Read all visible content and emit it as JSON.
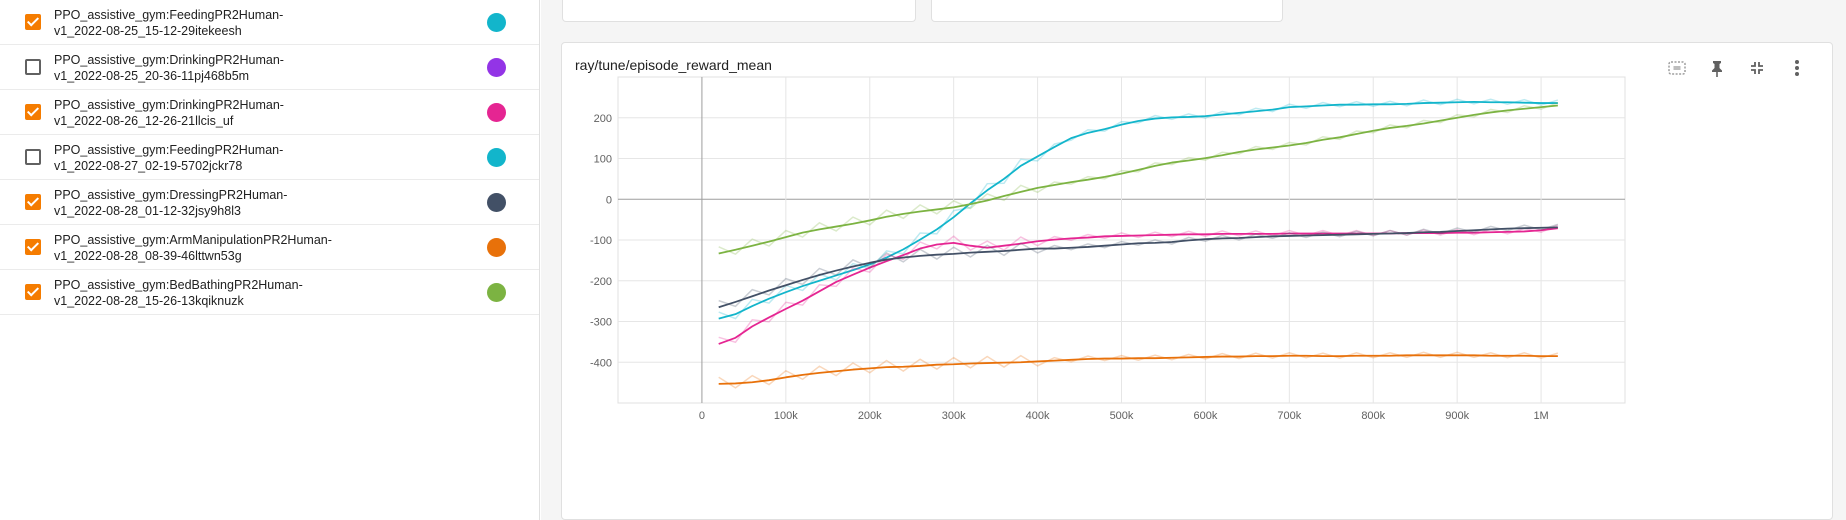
{
  "runs": [
    {
      "name_line1": "PPO_assistive_gym:FeedingPR2Human-",
      "name_line2": "v1_2022-08-25_15-12-29itekeesh",
      "checked": true,
      "color": "#12b5cb"
    },
    {
      "name_line1": "PPO_assistive_gym:DrinkingPR2Human-",
      "name_line2": "v1_2022-08-25_20-36-11pj468b5m",
      "checked": false,
      "color": "#9334e6"
    },
    {
      "name_line1": "PPO_assistive_gym:DrinkingPR2Human-",
      "name_line2": "v1_2022-08-26_12-26-21llcis_uf",
      "checked": true,
      "color": "#e52592"
    },
    {
      "name_line1": "PPO_assistive_gym:FeedingPR2Human-",
      "name_line2": "v1_2022-08-27_02-19-5702jckr78",
      "checked": false,
      "color": "#12b5cb"
    },
    {
      "name_line1": "PPO_assistive_gym:DressingPR2Human-",
      "name_line2": "v1_2022-08-28_01-12-32jsy9h8l3",
      "checked": true,
      "color": "#425066"
    },
    {
      "name_line1": "PPO_assistive_gym:ArmManipulationPR2Human-",
      "name_line2": "v1_2022-08-28_08-39-46lttwn53g",
      "checked": true,
      "color": "#e8710a"
    },
    {
      "name_line1": "PPO_assistive_gym:BedBathingPR2Human-",
      "name_line2": "v1_2022-08-28_15-26-13kqiknuzk",
      "checked": true,
      "color": "#7cb342"
    }
  ],
  "card": {
    "title": "ray/tune/episode_reward_mean",
    "tools": [
      "fit-domain-icon",
      "pin-icon",
      "collapse-icon",
      "more-vert-icon"
    ]
  },
  "chart_data": {
    "type": "line",
    "title": "ray/tune/episode_reward_mean",
    "xlabel": "",
    "ylabel": "",
    "xlim": [
      -100000,
      1100000
    ],
    "ylim": [
      -500,
      300
    ],
    "x_ticks": [
      "0",
      "100k",
      "200k",
      "300k",
      "400k",
      "500k",
      "600k",
      "700k",
      "800k",
      "900k",
      "1M"
    ],
    "y_ticks": [
      "200",
      "100",
      "0",
      "-100",
      "-200",
      "-300",
      "-400"
    ],
    "grid": true,
    "x": [
      20000,
      40000,
      60000,
      80000,
      100000,
      120000,
      140000,
      160000,
      180000,
      200000,
      220000,
      240000,
      260000,
      280000,
      300000,
      320000,
      340000,
      360000,
      380000,
      400000,
      420000,
      440000,
      460000,
      480000,
      500000,
      520000,
      540000,
      560000,
      580000,
      600000,
      620000,
      640000,
      660000,
      680000,
      700000,
      720000,
      740000,
      760000,
      780000,
      800000,
      820000,
      840000,
      860000,
      880000,
      900000,
      920000,
      940000,
      960000,
      980000,
      1000000,
      1020000
    ],
    "series": [
      {
        "run": 0,
        "color": "#12b5cb",
        "values": [
          -293,
          -282,
          -262,
          -244,
          -228,
          -213,
          -200,
          -187,
          -174,
          -160,
          -143,
          -123,
          -99,
          -74,
          -44,
          -10,
          22,
          50,
          82,
          105,
          128,
          150,
          163,
          172,
          183,
          192,
          198,
          201,
          202,
          204,
          208,
          212,
          216,
          220,
          226,
          228,
          230,
          232,
          232,
          233,
          233,
          234,
          236,
          237,
          238,
          239,
          238,
          238,
          237,
          236,
          236
        ]
      },
      {
        "run": 2,
        "color": "#e52592",
        "values": [
          -355,
          -340,
          -312,
          -290,
          -269,
          -249,
          -226,
          -203,
          -185,
          -168,
          -152,
          -137,
          -121,
          -111,
          -107,
          -114,
          -119,
          -114,
          -109,
          -103,
          -99,
          -96,
          -94,
          -91,
          -90,
          -89,
          -88,
          -87,
          -86,
          -86,
          -85,
          -85,
          -85,
          -85,
          -84,
          -84,
          -84,
          -84,
          -84,
          -84,
          -84,
          -83,
          -83,
          -83,
          -82,
          -82,
          -81,
          -80,
          -79,
          -76,
          -71
        ]
      },
      {
        "run": 4,
        "color": "#425066",
        "values": [
          -265,
          -252,
          -238,
          -224,
          -211,
          -198,
          -186,
          -175,
          -165,
          -156,
          -148,
          -143,
          -139,
          -136,
          -134,
          -131,
          -129,
          -127,
          -124,
          -121,
          -121,
          -119,
          -117,
          -114,
          -111,
          -108,
          -107,
          -105,
          -101,
          -98,
          -96,
          -95,
          -93,
          -91,
          -90,
          -89,
          -88,
          -87,
          -86,
          -85,
          -84,
          -83,
          -81,
          -80,
          -78,
          -76,
          -74,
          -72,
          -71,
          -70,
          -69
        ]
      },
      {
        "run": 5,
        "color": "#e8710a",
        "values": [
          -453,
          -452,
          -449,
          -444,
          -437,
          -431,
          -426,
          -422,
          -418,
          -415,
          -412,
          -411,
          -409,
          -406,
          -405,
          -403,
          -402,
          -401,
          -400,
          -398,
          -396,
          -394,
          -392,
          -391,
          -391,
          -390,
          -390,
          -389,
          -388,
          -387,
          -386,
          -386,
          -385,
          -385,
          -384,
          -384,
          -385,
          -385,
          -384,
          -384,
          -384,
          -383,
          -383,
          -383,
          -383,
          -383,
          -384,
          -384,
          -384,
          -385,
          -385
        ]
      },
      {
        "run": 6,
        "color": "#7cb342",
        "values": [
          -133,
          -124,
          -114,
          -104,
          -93,
          -82,
          -74,
          -67,
          -60,
          -52,
          -43,
          -36,
          -30,
          -25,
          -20,
          -12,
          -3,
          8,
          18,
          28,
          35,
          42,
          48,
          55,
          63,
          72,
          82,
          90,
          95,
          101,
          108,
          116,
          122,
          127,
          132,
          138,
          146,
          152,
          160,
          168,
          175,
          180,
          186,
          193,
          200,
          207,
          213,
          218,
          222,
          226,
          230
        ]
      }
    ]
  }
}
